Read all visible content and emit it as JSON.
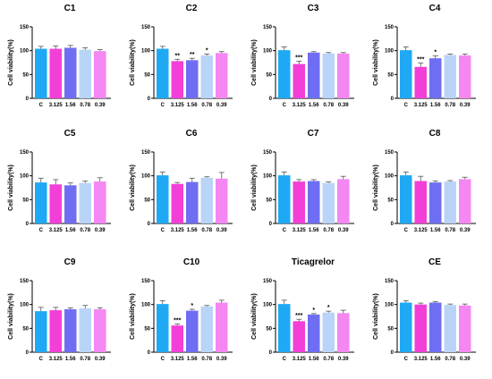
{
  "colors": [
    "#1fa9f4",
    "#f23fd8",
    "#6f6ef2",
    "#b9d4f7",
    "#f487f2"
  ],
  "chart_data": [
    {
      "type": "bar",
      "title": "C1",
      "ylabel": "Cell viability(%)",
      "ylim": [
        0,
        150
      ],
      "yticks": [
        "0",
        "50",
        "100",
        "150"
      ],
      "categories": [
        "C",
        "3.125",
        "1.56",
        "0.78",
        "0.39"
      ],
      "values": [
        104,
        104,
        106,
        102,
        99
      ],
      "errors": [
        5,
        6,
        5,
        4,
        3
      ],
      "significance": [
        "",
        "",
        "",
        "",
        ""
      ]
    },
    {
      "type": "bar",
      "title": "C2",
      "ylabel": "Cell viability(%)",
      "ylim": [
        0,
        150
      ],
      "yticks": [
        "0",
        "50",
        "100",
        "150"
      ],
      "categories": [
        "C",
        "3.125",
        "1.56",
        "0.78",
        "0.39"
      ],
      "values": [
        104,
        78,
        80,
        90,
        95
      ],
      "errors": [
        5,
        4,
        4,
        3,
        3
      ],
      "significance": [
        "",
        "**",
        "**",
        "*",
        ""
      ]
    },
    {
      "type": "bar",
      "title": "C3",
      "ylabel": "Cell viability(%)",
      "ylim": [
        0,
        150
      ],
      "yticks": [
        "0",
        "50",
        "100",
        "150"
      ],
      "categories": [
        "C",
        "3.125",
        "1.56",
        "0.78",
        "0.39"
      ],
      "values": [
        101,
        72,
        96,
        94,
        94
      ],
      "errors": [
        7,
        6,
        2,
        2,
        2
      ],
      "significance": [
        "",
        "***",
        "",
        "",
        ""
      ]
    },
    {
      "type": "bar",
      "title": "C4",
      "ylabel": "Cell viability(%)",
      "ylim": [
        0,
        150
      ],
      "yticks": [
        "0",
        "50",
        "100",
        "150"
      ],
      "categories": [
        "C",
        "3.125",
        "1.56",
        "0.78",
        "0.39"
      ],
      "values": [
        101,
        66,
        84,
        91,
        90
      ],
      "errors": [
        7,
        8,
        5,
        2,
        3
      ],
      "significance": [
        "",
        "***",
        "*",
        "",
        ""
      ]
    },
    {
      "type": "bar",
      "title": "C5",
      "ylabel": "Cell viability(%)",
      "ylim": [
        0,
        150
      ],
      "yticks": [
        "0",
        "50",
        "100",
        "150"
      ],
      "categories": [
        "C",
        "3.125",
        "1.56",
        "0.78",
        "0.39"
      ],
      "values": [
        86,
        82,
        80,
        85,
        88
      ],
      "errors": [
        9,
        10,
        5,
        4,
        8
      ],
      "significance": [
        "",
        "",
        "",
        "",
        ""
      ]
    },
    {
      "type": "bar",
      "title": "C6",
      "ylabel": "Cell viability(%)",
      "ylim": [
        0,
        150
      ],
      "yticks": [
        "0",
        "50",
        "100",
        "150"
      ],
      "categories": [
        "C",
        "3.125",
        "1.56",
        "0.78",
        "0.39"
      ],
      "values": [
        101,
        83,
        87,
        96,
        94
      ],
      "errors": [
        7,
        3,
        8,
        2,
        13
      ],
      "significance": [
        "",
        "",
        "",
        "",
        ""
      ]
    },
    {
      "type": "bar",
      "title": "C7",
      "ylabel": "Cell viability(%)",
      "ylim": [
        0,
        150
      ],
      "yticks": [
        "0",
        "50",
        "100",
        "150"
      ],
      "categories": [
        "C",
        "3.125",
        "1.56",
        "0.78",
        "0.39"
      ],
      "values": [
        101,
        88,
        89,
        85,
        93
      ],
      "errors": [
        7,
        4,
        3,
        2,
        6
      ],
      "significance": [
        "",
        "",
        "",
        "",
        ""
      ]
    },
    {
      "type": "bar",
      "title": "C8",
      "ylabel": "Cell viability(%)",
      "ylim": [
        0,
        150
      ],
      "yticks": [
        "0",
        "50",
        "100",
        "150"
      ],
      "categories": [
        "C",
        "3.125",
        "1.56",
        "0.78",
        "0.39"
      ],
      "values": [
        101,
        89,
        86,
        88,
        93
      ],
      "errors": [
        7,
        10,
        3,
        2,
        4
      ],
      "significance": [
        "",
        "",
        "",
        "",
        ""
      ]
    },
    {
      "type": "bar",
      "title": "C9",
      "ylabel": "Cell viability(%)",
      "ylim": [
        0,
        150
      ],
      "yticks": [
        "0",
        "50",
        "100",
        "150"
      ],
      "categories": [
        "C",
        "3.125",
        "1.56",
        "0.78",
        "0.39"
      ],
      "values": [
        86,
        88,
        90,
        92,
        90
      ],
      "errors": [
        8,
        6,
        3,
        6,
        3
      ],
      "significance": [
        "",
        "",
        "",
        "",
        ""
      ]
    },
    {
      "type": "bar",
      "title": "C10",
      "ylabel": "Cell viability(%)",
      "ylim": [
        0,
        150
      ],
      "yticks": [
        "0",
        "50",
        "100",
        "150"
      ],
      "categories": [
        "C",
        "3.125",
        "1.56",
        "0.78",
        "0.39"
      ],
      "values": [
        101,
        56,
        87,
        96,
        104
      ],
      "errors": [
        7,
        3,
        3,
        2,
        5
      ],
      "significance": [
        "",
        "***",
        "*",
        "",
        ""
      ]
    },
    {
      "type": "bar",
      "title": "Ticagrelor",
      "ylabel": "Cell viability(%)",
      "ylim": [
        0,
        150
      ],
      "yticks": [
        "0",
        "50",
        "100",
        "150"
      ],
      "categories": [
        "C",
        "3.125",
        "1.56",
        "0.78",
        "0.39"
      ],
      "values": [
        101,
        65,
        79,
        83,
        82
      ],
      "errors": [
        8,
        4,
        2,
        3,
        6
      ],
      "significance": [
        "",
        "***",
        "*",
        "*",
        ""
      ]
    },
    {
      "type": "bar",
      "title": "CE",
      "ylabel": "Cell viability(%)",
      "ylim": [
        0,
        150
      ],
      "yticks": [
        "0",
        "50",
        "100",
        "150"
      ],
      "categories": [
        "C",
        "3.125",
        "1.56",
        "0.78",
        "0.39"
      ],
      "values": [
        104,
        100,
        104,
        99,
        98
      ],
      "errors": [
        4,
        3,
        2,
        2,
        3
      ],
      "significance": [
        "",
        "",
        "",
        "",
        ""
      ]
    }
  ]
}
